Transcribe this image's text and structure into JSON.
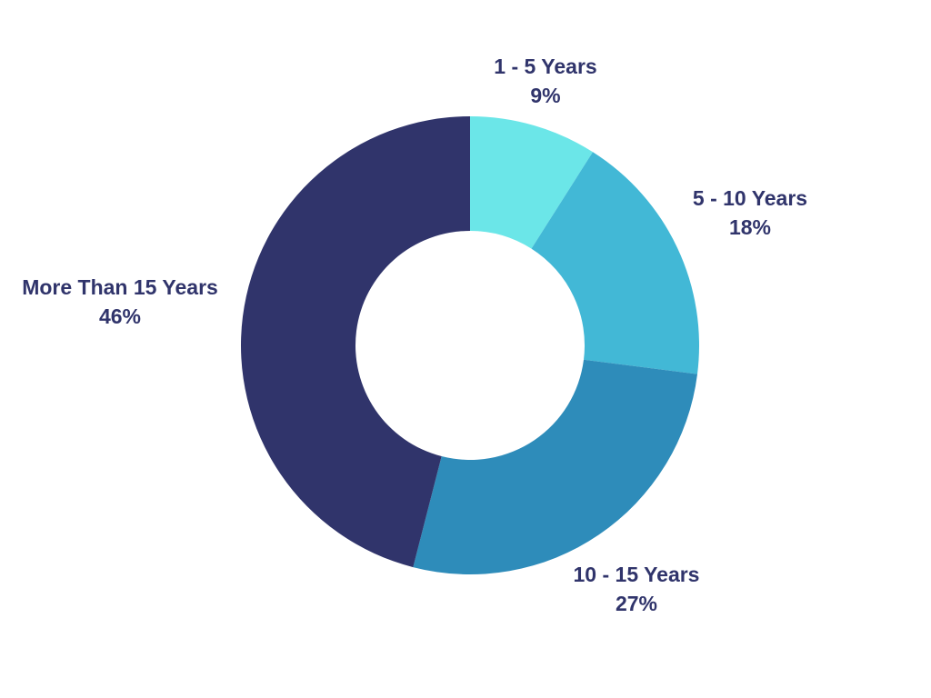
{
  "chart_data": {
    "type": "pie",
    "variant": "donut",
    "title": "",
    "slices": [
      {
        "label": "1 - 5 Years",
        "value": 9,
        "display": "9%",
        "color": "#6be6e8"
      },
      {
        "label": "5 - 10 Years",
        "value": 18,
        "display": "18%",
        "color": "#42b8d6"
      },
      {
        "label": "10 - 15 Years",
        "value": 27,
        "display": "27%",
        "color": "#2e8cba"
      },
      {
        "label": "More Than 15 Years",
        "value": 46,
        "display": "46%",
        "color": "#30346b"
      }
    ],
    "label_color": "#30346b",
    "legend": "none",
    "start_angle": "12 o'clock",
    "direction": "clockwise"
  }
}
